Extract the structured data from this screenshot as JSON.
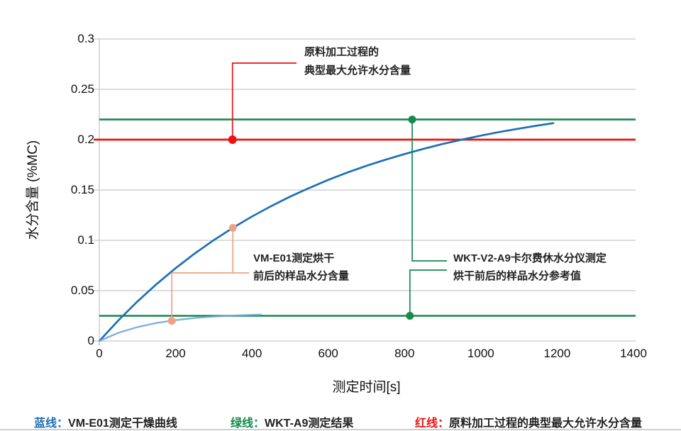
{
  "palette": {
    "blue": "#1d6fb5",
    "light_blue": "#74a7d8",
    "green": "#148a4d",
    "red": "#ee1111",
    "orange": "#f0a184",
    "grid": "#c6c6c6"
  },
  "chart_data": {
    "type": "line",
    "title": "",
    "xlabel": "测定时间[s]",
    "ylabel": "水分含量 (%MC)",
    "xlim": [
      0,
      1400
    ],
    "ylim": [
      0,
      0.3
    ],
    "x_ticks": [
      0,
      200,
      400,
      600,
      800,
      1000,
      1200,
      1400
    ],
    "y_ticks": [
      0,
      0.05,
      0.1,
      0.15,
      0.2,
      0.25,
      0.3
    ],
    "y_gridlines": [
      0.05,
      0.1,
      0.15,
      0.25,
      0.3
    ],
    "grid": "horizontal-only",
    "series": [
      {
        "label": "VM-E01测定干燥曲线",
        "color_key": "blue",
        "points": [
          [
            0,
            0
          ],
          [
            50,
            0.0205
          ],
          [
            100,
            0.0393
          ],
          [
            150,
            0.0565
          ],
          [
            200,
            0.0723
          ],
          [
            250,
            0.0869
          ],
          [
            300,
            0.1002
          ],
          [
            350,
            0.1124
          ],
          [
            400,
            0.1236
          ],
          [
            450,
            0.1339
          ],
          [
            500,
            0.1434
          ],
          [
            550,
            0.152
          ],
          [
            600,
            0.16
          ],
          [
            650,
            0.1673
          ],
          [
            700,
            0.174
          ],
          [
            750,
            0.1801
          ],
          [
            800,
            0.1857
          ],
          [
            850,
            0.1909
          ],
          [
            900,
            0.1957
          ],
          [
            950,
            0.2
          ],
          [
            1000,
            0.204
          ],
          [
            1050,
            0.2077
          ],
          [
            1100,
            0.211
          ],
          [
            1150,
            0.2141
          ],
          [
            1190,
            0.2164
          ]
        ]
      },
      {
        "label": "",
        "color_key": "light_blue",
        "points": [
          [
            0,
            0
          ],
          [
            50,
            0.0081
          ],
          [
            100,
            0.0138
          ],
          [
            150,
            0.0179
          ],
          [
            200,
            0.0207
          ],
          [
            250,
            0.0228
          ],
          [
            300,
            0.0242
          ],
          [
            350,
            0.0252
          ],
          [
            400,
            0.0259
          ],
          [
            424,
            0.0262
          ]
        ]
      }
    ],
    "reference_lines": [
      {
        "name": "红线",
        "value": 0.2,
        "color_key": "red"
      },
      {
        "name": "绿线",
        "value": 0.22,
        "color_key": "green"
      },
      {
        "name": "绿线",
        "value": 0.025,
        "color_key": "green"
      }
    ],
    "markers": [
      {
        "id": "red-marker",
        "color_key": "red",
        "x": 349,
        "y": 0.2,
        "r": 6
      },
      {
        "id": "orange-marker-upper",
        "color_key": "orange",
        "x": 350,
        "y": 0.1124,
        "r": 5.5
      },
      {
        "id": "orange-marker-lower",
        "color_key": "orange",
        "x": 190,
        "y": 0.02,
        "r": 5.5
      },
      {
        "id": "green-marker-upper",
        "color_key": "green",
        "x": 820,
        "y": 0.22,
        "r": 5.5
      },
      {
        "id": "green-marker-lower",
        "color_key": "green",
        "x": 814,
        "y": 0.025,
        "r": 5.5
      }
    ],
    "annotations": {
      "red": {
        "line1": "原料加工过程的",
        "line2": "典型最大允许水分含量"
      },
      "orange": {
        "line1": "VM-E01测定烘干",
        "line2": "前后的样品水分含量"
      },
      "green": {
        "line1": "WKT-V2-A9卡尔费休水分仪测定",
        "line2": "烘干前后的样品水分参考值"
      }
    }
  },
  "legend": [
    {
      "prefix": "蓝线：",
      "text": "VM-E01测定干燥曲线"
    },
    {
      "prefix": "绿线：",
      "text": "WKT-A9测定结果"
    },
    {
      "prefix": "红线：",
      "text": "原料加工过程的典型最大允许水分含量"
    }
  ]
}
